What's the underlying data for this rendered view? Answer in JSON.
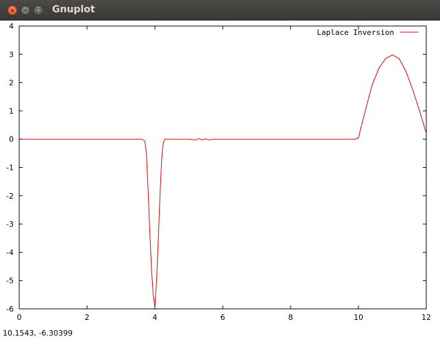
{
  "window": {
    "title": "Gnuplot",
    "buttons": {
      "close_glyph": "×",
      "minimize_glyph": "−",
      "maximize_glyph": "□"
    }
  },
  "status": {
    "coordinates": "10.1543, -6.30399"
  },
  "colors": {
    "series": "#e00000",
    "frame": "#000000"
  },
  "chart_data": {
    "type": "line",
    "xlim": [
      0,
      12
    ],
    "ylim": [
      -6,
      4
    ],
    "x_ticks": [
      0,
      2,
      4,
      6,
      8,
      10,
      12
    ],
    "y_ticks": [
      -6,
      -5,
      -4,
      -3,
      -2,
      -1,
      0,
      1,
      2,
      3,
      4
    ],
    "grid": false,
    "legend_position": "top-right",
    "series": [
      {
        "name": "Laplace Inversion",
        "x": [
          0,
          3.6,
          3.7,
          3.75,
          3.8,
          3.85,
          3.9,
          3.95,
          4.0,
          4.05,
          4.1,
          4.15,
          4.2,
          4.25,
          4.3,
          4.4,
          5.0,
          5.2,
          5.3,
          5.4,
          5.5,
          5.6,
          5.7,
          6.0,
          9.9,
          10.0,
          10.2,
          10.4,
          10.6,
          10.8,
          11.0,
          11.2,
          11.4,
          11.6,
          11.8,
          12.0
        ],
        "y": [
          0,
          0,
          -0.05,
          -0.5,
          -1.8,
          -3.3,
          -4.6,
          -5.5,
          -5.95,
          -5.0,
          -3.6,
          -2.0,
          -0.7,
          -0.1,
          0,
          0,
          0,
          -0.03,
          0.02,
          -0.03,
          0.01,
          -0.03,
          0,
          0,
          0,
          0.05,
          1.0,
          1.9,
          2.5,
          2.85,
          2.98,
          2.85,
          2.4,
          1.75,
          1.0,
          0.2
        ]
      }
    ]
  }
}
